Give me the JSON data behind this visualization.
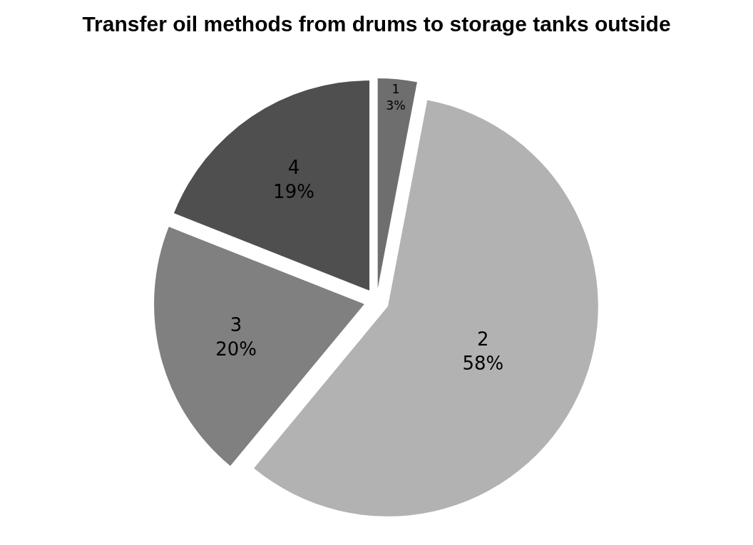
{
  "chart_data": {
    "type": "pie",
    "title": "Transfer oil methods from drums to storage tanks outside",
    "categories": [
      "1",
      "2",
      "3",
      "4"
    ],
    "values": [
      3,
      58,
      20,
      19
    ],
    "value_labels": [
      "3%",
      "58%",
      "20%",
      "19%"
    ],
    "colors": [
      "#6e6e6e",
      "#b2b2b2",
      "#808080",
      "#4f4f4f"
    ],
    "legend": false
  }
}
